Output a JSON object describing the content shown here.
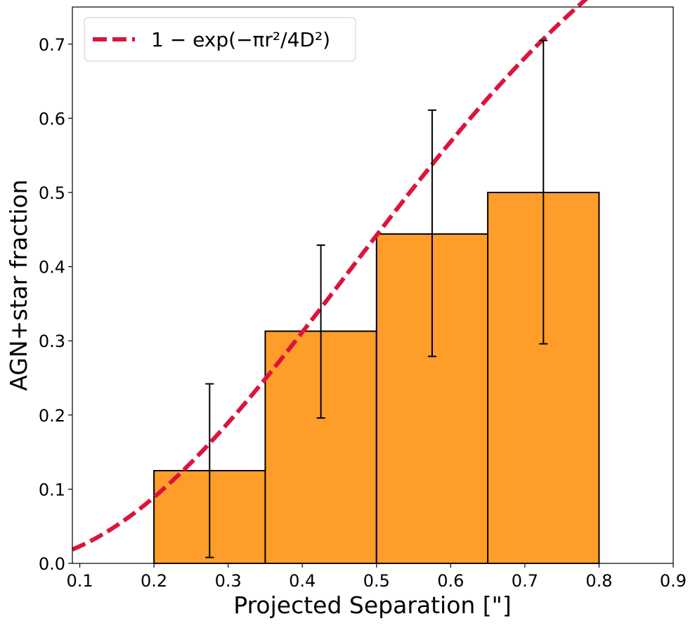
{
  "chart_data": {
    "type": "bar",
    "xlabel": "Projected Separation [\"]",
    "ylabel": "AGN+star fraction",
    "xlim": [
      0.09,
      0.9
    ],
    "ylim": [
      0.0,
      0.75
    ],
    "x_ticks": [
      "0.1",
      "0.2",
      "0.3",
      "0.4",
      "0.5",
      "0.6",
      "0.7",
      "0.8",
      "0.9"
    ],
    "y_ticks": [
      "0.0",
      "0.1",
      "0.2",
      "0.3",
      "0.4",
      "0.5",
      "0.6",
      "0.7"
    ],
    "bins": [
      {
        "x0": 0.2,
        "x1": 0.35,
        "value": 0.125,
        "err_low": 0.008,
        "err_high": 0.242
      },
      {
        "x0": 0.35,
        "x1": 0.5,
        "value": 0.313,
        "err_low": 0.196,
        "err_high": 0.429
      },
      {
        "x0": 0.5,
        "x1": 0.65,
        "value": 0.444,
        "err_low": 0.279,
        "err_high": 0.611
      },
      {
        "x0": 0.65,
        "x1": 0.8,
        "value": 0.5,
        "err_low": 0.296,
        "err_high": 0.705
      }
    ],
    "curve": {
      "name": "1 − exp(−πr²/4D²)",
      "D": 0.58,
      "style": "dashed"
    },
    "colors": {
      "bar": "#ff9d2b",
      "bar_edge": "#000000",
      "curve": "#dc143c",
      "errorbar": "#000000"
    },
    "grid": false,
    "legend_position": "top-left"
  }
}
